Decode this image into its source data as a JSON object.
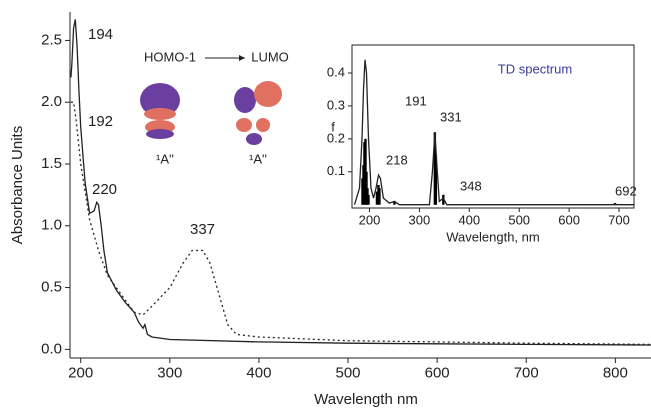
{
  "chart_data": [
    {
      "type": "line",
      "x_label": "Wavelength nm",
      "y_label": "Absorbance Units",
      "xlim": [
        188,
        840
      ],
      "ylim": [
        -0.07,
        2.73
      ],
      "xticks": [
        200,
        300,
        400,
        500,
        600,
        700,
        800
      ],
      "yticks": [
        {
          "value": 0,
          "label": "0.0"
        },
        {
          "value": 0.5,
          "label": "0.5"
        },
        {
          "value": 1,
          "label": "1.0"
        },
        {
          "value": 1.5,
          "label": "1.5"
        },
        {
          "value": 2,
          "label": "2.0"
        },
        {
          "value": 2.5,
          "label": "2.5"
        }
      ],
      "annotations": [
        "194",
        "192",
        "220",
        "337"
      ],
      "series": [
        {
          "style": "solid",
          "color": "#222222",
          "x": [
            189,
            190,
            192,
            194,
            196,
            198,
            200,
            205,
            210,
            215,
            218,
            220,
            223,
            226,
            230,
            240,
            250,
            260,
            265,
            270,
            272,
            275,
            280,
            300,
            400,
            500,
            600,
            700,
            840
          ],
          "values": [
            2.2,
            2.3,
            2.6,
            2.67,
            2.45,
            2.1,
            1.8,
            1.35,
            1.1,
            1.12,
            1.19,
            1.17,
            1.0,
            0.8,
            0.62,
            0.48,
            0.38,
            0.3,
            0.22,
            0.17,
            0.2,
            0.12,
            0.1,
            0.08,
            0.06,
            0.05,
            0.045,
            0.04,
            0.035
          ]
        },
        {
          "style": "dotted",
          "color": "#222222",
          "x": [
            189,
            192,
            195,
            200,
            210,
            220,
            230,
            240,
            250,
            260,
            270,
            280,
            300,
            315,
            325,
            337,
            345,
            355,
            365,
            375,
            400,
            500,
            600,
            700,
            840
          ],
          "values": [
            2.0,
            2.0,
            1.85,
            1.5,
            1.05,
            0.8,
            0.6,
            0.5,
            0.4,
            0.3,
            0.28,
            0.35,
            0.5,
            0.7,
            0.8,
            0.8,
            0.7,
            0.45,
            0.2,
            0.12,
            0.1,
            0.07,
            0.06,
            0.05,
            0.04
          ]
        }
      ]
    },
    {
      "type": "stick",
      "title": "TD spectrum",
      "title_color": "#3a3a9a",
      "x_label": "Wavelength, nm",
      "y_label": "f",
      "xlim": [
        165,
        730
      ],
      "ylim": [
        -0.01,
        0.485
      ],
      "xticks": [
        200,
        300,
        400,
        500,
        600,
        700
      ],
      "yticks": [
        0.1,
        0.2,
        0.3,
        0.4
      ],
      "annotations": [
        "191",
        "218",
        "331",
        "348",
        "692"
      ],
      "sticks": {
        "color": "#000000",
        "x": [
          186,
          188,
          190,
          192,
          194,
          196,
          198,
          215,
          218,
          220,
          250,
          331,
          333,
          348,
          692
        ],
        "values": [
          0.08,
          0.12,
          0.19,
          0.2,
          0.1,
          0.05,
          0.03,
          0.04,
          0.06,
          0.05,
          0.01,
          0.22,
          0.15,
          0.03,
          0.005
        ]
      },
      "envelope": {
        "color": "#222222",
        "x": [
          170,
          180,
          185,
          188,
          191,
          194,
          198,
          203,
          208,
          213,
          218,
          222,
          228,
          240,
          250,
          260,
          320,
          326,
          331,
          336,
          340,
          348,
          355,
          730
        ],
        "values": [
          0,
          0.05,
          0.2,
          0.35,
          0.44,
          0.4,
          0.2,
          0.05,
          0.02,
          0.05,
          0.09,
          0.08,
          0.02,
          0.005,
          0.01,
          0,
          0,
          0.1,
          0.22,
          0.1,
          0.01,
          0.02,
          0,
          0
        ]
      }
    }
  ],
  "molecular_orbitals": {
    "from": "HOMO-1",
    "to": "LUMO",
    "symmetry": [
      "¹A''",
      "¹A''"
    ]
  }
}
